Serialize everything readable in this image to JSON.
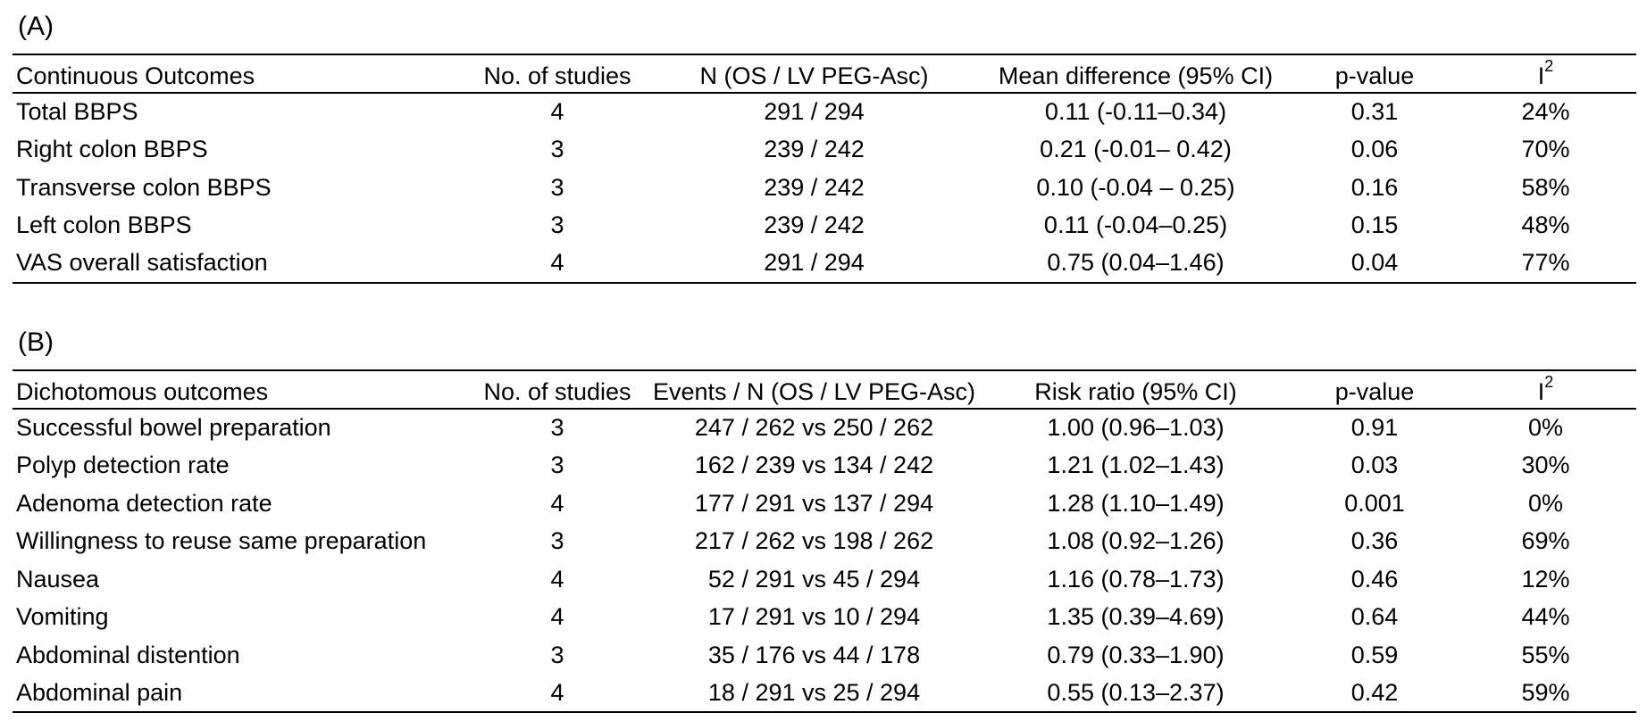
{
  "panel_a": {
    "label": "(A)",
    "headers": [
      "Continuous Outcomes",
      "No. of studies",
      "N (OS / LV PEG-Asc)",
      "Mean difference (95% CI)",
      "p-value",
      "I"
    ],
    "i2_sup": "2",
    "rows": [
      [
        "Total BBPS",
        "4",
        "291 / 294",
        "0.11 (-0.11–0.34)",
        "0.31",
        "24%"
      ],
      [
        "Right colon BBPS",
        "3",
        "239 / 242",
        "0.21 (-0.01– 0.42)",
        "0.06",
        "70%"
      ],
      [
        "Transverse colon BBPS",
        "3",
        "239 / 242",
        "0.10 (-0.04 – 0.25)",
        "0.16",
        "58%"
      ],
      [
        "Left colon BBPS",
        "3",
        "239 / 242",
        "0.11 (-0.04–0.25)",
        "0.15",
        "48%"
      ],
      [
        "VAS overall satisfaction",
        "4",
        "291 / 294",
        "0.75 (0.04–1.46)",
        "0.04",
        "77%"
      ]
    ]
  },
  "panel_b": {
    "label": "(B)",
    "headers": [
      "Dichotomous outcomes",
      "No. of studies",
      "Events / N (OS / LV PEG-Asc)",
      "Risk ratio (95% CI)",
      "p-value",
      "I"
    ],
    "i2_sup": "2",
    "rows": [
      [
        "Successful bowel preparation",
        "3",
        "247 / 262 vs 250 / 262",
        "1.00 (0.96–1.03)",
        "0.91",
        "0%"
      ],
      [
        "Polyp detection rate",
        "3",
        "162 / 239 vs 134 / 242",
        "1.21 (1.02–1.43)",
        "0.03",
        "30%"
      ],
      [
        "Adenoma detection rate",
        "4",
        "177 / 291 vs 137 / 294",
        "1.28 (1.10–1.49)",
        "0.001",
        "0%"
      ],
      [
        "Willingness to reuse same preparation",
        "3",
        "217 / 262 vs 198 / 262",
        "1.08 (0.92–1.26)",
        "0.36",
        "69%"
      ],
      [
        "Nausea",
        "4",
        "52 / 291 vs 45 / 294",
        "1.16 (0.78–1.73)",
        "0.46",
        "12%"
      ],
      [
        "Vomiting",
        "4",
        "17 / 291 vs 10 / 294",
        "1.35 (0.39–4.69)",
        "0.64",
        "44%"
      ],
      [
        "Abdominal distention",
        "3",
        "35 / 176 vs 44 / 178",
        "0.79 (0.33–1.90)",
        "0.59",
        "55%"
      ],
      [
        "Abdominal pain",
        "4",
        "18 / 291 vs 25 / 294",
        "0.55 (0.13–2.37)",
        "0.42",
        "59%"
      ]
    ]
  }
}
